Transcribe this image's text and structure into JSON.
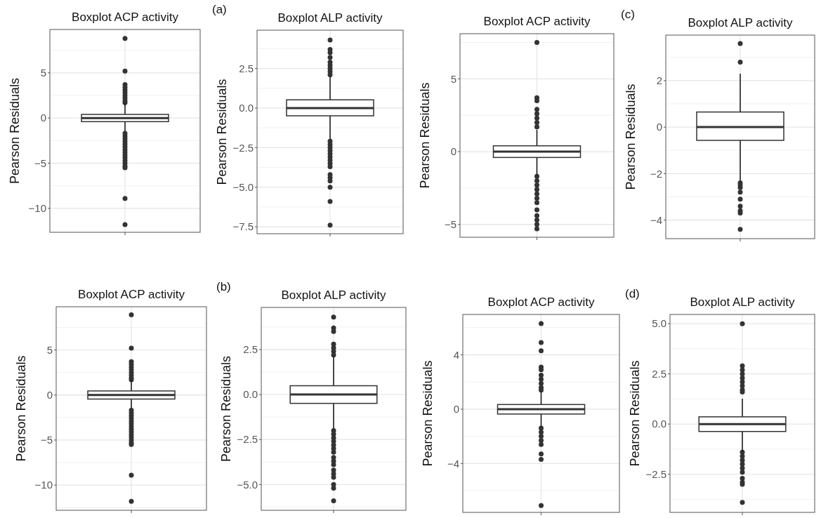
{
  "chart_data": [
    {
      "type": "box",
      "title": "Boxplot ACP activity",
      "ylabel": "Pearson Residuals",
      "categories": [
        null
      ],
      "ylim": [
        -12.65,
        9.8
      ],
      "yticks": [
        {
          "value": -10,
          "label": "−10"
        },
        {
          "value": -5,
          "label": "−5"
        },
        0,
        5
      ],
      "grid": true,
      "tick_labels": "y",
      "boxes": [
        {
          "low": -1.5,
          "q1": -0.4,
          "median": 0,
          "q3": 0.4,
          "high": 1.6,
          "outliers": [
            8.8,
            5.2,
            3.7,
            3.4,
            3.1,
            2.8,
            2.5,
            2.2,
            1.9,
            1.7,
            -1.7,
            -2.0,
            -2.3,
            -2.6,
            -2.9,
            -3.2,
            -3.5,
            -3.8,
            -4.1,
            -4.4,
            -4.7,
            -5.0,
            -5.3,
            -5.5,
            -8.9,
            -11.8
          ]
        }
      ]
    },
    {
      "type": "box",
      "title": "Boxplot ALP activity",
      "ylabel": "Pearson Residuals",
      "annotations": [
        "(a)"
      ],
      "categories": [
        null
      ],
      "ylim": [
        -7.94,
        4.92
      ],
      "yticks": [
        {
          "value": -7.5,
          "label": "−7.5"
        },
        {
          "value": -5,
          "label": "−5.0"
        },
        {
          "value": -2.5,
          "label": "−2.5"
        },
        {
          "value": 0,
          "label": "0.0"
        },
        2.5
      ],
      "grid": true,
      "tick_labels": "y",
      "boxes": [
        {
          "low": -2.0,
          "q1": -0.49,
          "median": 0,
          "q3": 0.52,
          "high": 2.0,
          "outliers": [
            4.3,
            3.7,
            3.5,
            3.2,
            2.9,
            2.7,
            2.5,
            2.3,
            2.1,
            -2.1,
            -2.3,
            -2.5,
            -2.7,
            -2.9,
            -3.1,
            -3.3,
            -3.5,
            -3.7,
            -4.2,
            -4.4,
            -4.6,
            -5.0,
            -5.9,
            -7.4
          ]
        }
      ]
    },
    {
      "type": "box",
      "title": "Boxplot ACP activity",
      "ylabel": "Pearson Residuals",
      "categories": [
        null
      ],
      "ylim": [
        -5.88,
        8.1
      ],
      "yticks": [
        {
          "value": -5,
          "label": "−5"
        },
        0,
        5
      ],
      "grid": true,
      "tick_labels": "y",
      "boxes": [
        {
          "low": -1.6,
          "q1": -0.4,
          "median": 0,
          "q3": 0.4,
          "high": 1.5,
          "outliers": [
            7.5,
            3.7,
            3.5,
            2.9,
            2.6,
            2.3,
            2.0,
            1.7,
            -1.7,
            -2.0,
            -2.3,
            -2.6,
            -2.9,
            -3.2,
            -3.5,
            -4.0,
            -4.4,
            -4.7,
            -5.0,
            -5.3
          ]
        }
      ]
    },
    {
      "type": "box",
      "title": "Boxplot ALP activity",
      "ylabel": "Pearson Residuals",
      "annotations": [
        "(c)"
      ],
      "categories": [
        null
      ],
      "ylim": [
        -4.8,
        3.96
      ],
      "yticks": [
        {
          "value": -4,
          "label": "−4"
        },
        {
          "value": -2,
          "label": "−2"
        },
        0,
        2
      ],
      "grid": true,
      "tick_labels": "y",
      "boxes": [
        {
          "low": -2.3,
          "q1": -0.57,
          "median": 0,
          "q3": 0.65,
          "high": 2.3,
          "outliers": [
            3.6,
            2.8,
            -2.4,
            -2.5,
            -2.6,
            -2.8,
            -3.1,
            -3.4,
            -3.6,
            -3.7,
            -4.4
          ]
        }
      ]
    },
    {
      "type": "box",
      "title": "Boxplot ACP activity",
      "ylabel": "Pearson Residuals",
      "categories": [
        null
      ],
      "ylim": [
        -12.8,
        9.8
      ],
      "yticks": [
        {
          "value": -10,
          "label": "−10"
        },
        {
          "value": -5,
          "label": "−5"
        },
        0,
        5
      ],
      "grid": true,
      "tick_labels": "y",
      "boxes": [
        {
          "low": -1.5,
          "q1": -0.45,
          "median": 0,
          "q3": 0.45,
          "high": 1.6,
          "outliers": [
            8.9,
            5.2,
            3.7,
            3.4,
            3.1,
            2.8,
            2.5,
            2.2,
            1.9,
            1.7,
            -1.7,
            -2.0,
            -2.3,
            -2.6,
            -2.9,
            -3.2,
            -3.5,
            -3.8,
            -4.1,
            -4.4,
            -4.7,
            -5.0,
            -5.3,
            -5.5,
            -8.9,
            -11.8
          ]
        }
      ]
    },
    {
      "type": "box",
      "title": "Boxplot ALP activity",
      "ylabel": "Pearson Residuals",
      "annotations": [
        "(b)"
      ],
      "categories": [
        null
      ],
      "ylim": [
        -6.43,
        4.84
      ],
      "yticks": [
        {
          "value": -5,
          "label": "−5.0"
        },
        {
          "value": -2.5,
          "label": "−2.5"
        },
        {
          "value": 0,
          "label": "0.0"
        },
        2.5
      ],
      "grid": true,
      "tick_labels": "y",
      "boxes": [
        {
          "low": -1.9,
          "q1": -0.49,
          "median": 0,
          "q3": 0.49,
          "high": 2.1,
          "outliers": [
            4.3,
            3.7,
            3.5,
            2.8,
            2.6,
            2.4,
            2.2,
            -2.0,
            -2.2,
            -2.4,
            -2.6,
            -2.8,
            -3.0,
            -3.2,
            -3.5,
            -3.7,
            -3.9,
            -4.2,
            -4.4,
            -4.6,
            -5.0,
            -5.2,
            -5.9
          ]
        }
      ]
    },
    {
      "type": "box",
      "title": "Boxplot ACP activity",
      "ylabel": "Pearson Residuals",
      "categories": [
        null
      ],
      "ylim": [
        -7.6,
        6.97
      ],
      "yticks": [
        {
          "value": -4,
          "label": "−4"
        },
        0,
        4
      ],
      "grid": true,
      "tick_labels": "y",
      "boxes": [
        {
          "low": -1.3,
          "q1": -0.36,
          "median": 0,
          "q3": 0.34,
          "high": 1.3,
          "outliers": [
            6.3,
            4.9,
            4.3,
            3.1,
            2.9,
            2.5,
            2.2,
            1.9,
            1.6,
            1.4,
            -1.4,
            -1.7,
            -2.0,
            -2.3,
            -2.6,
            -3.3,
            -3.7,
            -7.1
          ]
        }
      ]
    },
    {
      "type": "box",
      "title": "Boxplot ALP activity",
      "ylabel": "Pearson Residuals",
      "annotations": [
        "(d)"
      ],
      "categories": [
        null
      ],
      "ylim": [
        -4.4,
        5.46
      ],
      "yticks": [
        {
          "value": -2.5,
          "label": "−2.5"
        },
        {
          "value": 0,
          "label": "0.0"
        },
        2.5,
        {
          "value": 5,
          "label": "5.0"
        }
      ],
      "grid": true,
      "tick_labels": "y",
      "boxes": [
        {
          "low": -1.35,
          "q1": -0.37,
          "median": 0,
          "q3": 0.36,
          "high": 1.26,
          "outliers": [
            5.0,
            2.9,
            2.7,
            2.5,
            2.3,
            2.1,
            1.9,
            1.7,
            1.6,
            -1.4,
            -1.6,
            -1.8,
            -2.0,
            -2.2,
            -2.4,
            -2.7,
            -2.9,
            -3.0,
            -3.9
          ]
        }
      ]
    }
  ]
}
